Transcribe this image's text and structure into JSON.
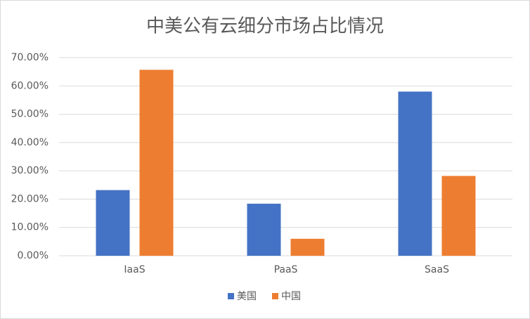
{
  "chart_data": {
    "type": "bar",
    "title": "中美公有云细分市场占比情况",
    "categories": [
      "IaaS",
      "PaaS",
      "SaaS"
    ],
    "series": [
      {
        "name": "美国",
        "color": "#4472c4",
        "values": [
          23.2,
          18.4,
          58.0
        ]
      },
      {
        "name": "中国",
        "color": "#ed7d31",
        "values": [
          65.7,
          6.0,
          28.2
        ]
      }
    ],
    "ylim": [
      0,
      70
    ],
    "yticks": [
      {
        "value": 0,
        "label": "0.00%"
      },
      {
        "value": 10,
        "label": "10.00%"
      },
      {
        "value": 20,
        "label": "20.00%"
      },
      {
        "value": 30,
        "label": "30.00%"
      },
      {
        "value": 40,
        "label": "40.00%"
      },
      {
        "value": 50,
        "label": "50.00%"
      },
      {
        "value": 60,
        "label": "60.00%"
      },
      {
        "value": 70,
        "label": "70.00%"
      }
    ],
    "grid": true,
    "legend": "bottom"
  }
}
